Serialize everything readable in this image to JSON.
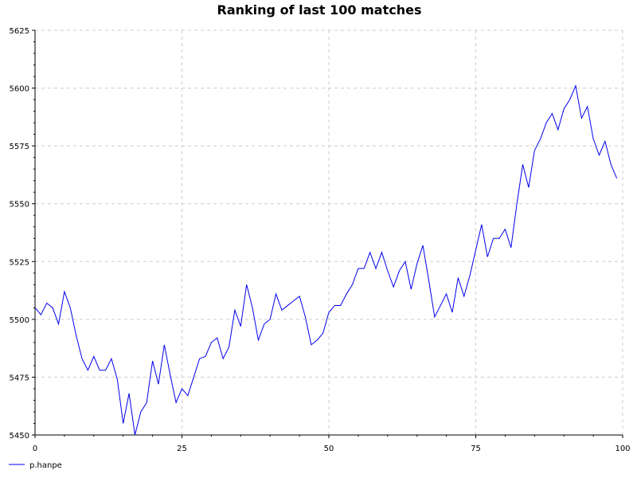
{
  "chart_data": {
    "type": "line",
    "title": "Ranking of last 100 matches",
    "xlabel": "",
    "ylabel": "",
    "xlim": [
      0,
      100
    ],
    "ylim": [
      5450,
      5625
    ],
    "x_ticks": [
      0,
      25,
      50,
      75,
      100
    ],
    "y_ticks": [
      5450,
      5475,
      5500,
      5525,
      5550,
      5575,
      5600,
      5625
    ],
    "grid": true,
    "legend_position": "bottom-left",
    "series": [
      {
        "name": "p.hanpe",
        "color": "#0000ee",
        "x": [
          0,
          1,
          2,
          3,
          4,
          5,
          6,
          7,
          8,
          9,
          10,
          11,
          12,
          13,
          14,
          15,
          16,
          17,
          18,
          19,
          20,
          21,
          22,
          23,
          24,
          25,
          26,
          27,
          28,
          29,
          30,
          31,
          32,
          33,
          34,
          35,
          36,
          37,
          38,
          39,
          40,
          41,
          42,
          43,
          44,
          45,
          46,
          47,
          48,
          49,
          50,
          51,
          52,
          53,
          54,
          55,
          56,
          57,
          58,
          59,
          60,
          61,
          62,
          63,
          64,
          65,
          66,
          67,
          68,
          69,
          70,
          71,
          72,
          73,
          74,
          75,
          76,
          77,
          78,
          79,
          80,
          81,
          82,
          83,
          84,
          85,
          86,
          87,
          88,
          89,
          90,
          91,
          92,
          93,
          94,
          95,
          96,
          97,
          98,
          99
        ],
        "values": [
          5505,
          5502,
          5507,
          5505,
          5498,
          5512,
          5505,
          5493,
          5483,
          5478,
          5484,
          5478,
          5478,
          5483,
          5474,
          5455,
          5468,
          5450,
          5460,
          5464,
          5482,
          5472,
          5489,
          5476,
          5464,
          5470,
          5467,
          5475,
          5483,
          5484,
          5490,
          5492,
          5483,
          5488,
          5504,
          5497,
          5515,
          5505,
          5491,
          5498,
          5500,
          5511,
          5504,
          5506,
          5508,
          5510,
          5501,
          5489,
          5491,
          5494,
          5503,
          5506,
          5506,
          5511,
          5515,
          5522,
          5522,
          5529,
          5522,
          5529,
          5521,
          5514,
          5521,
          5525,
          5513,
          5524,
          5532,
          5517,
          5501,
          5506,
          5511,
          5503,
          5518,
          5510,
          5519,
          5530,
          5541,
          5527,
          5535,
          5535,
          5539,
          5531,
          5550,
          5567,
          5557,
          5573,
          5578,
          5585,
          5589,
          5582,
          5591,
          5595,
          5601,
          5587,
          5592,
          5578,
          5571,
          5577,
          5567,
          5561
        ]
      }
    ]
  }
}
